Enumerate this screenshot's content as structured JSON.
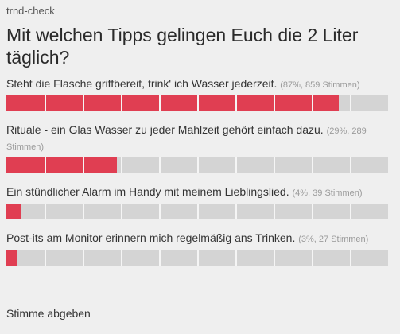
{
  "brand": "trnd-check",
  "question": "Mit welchen Tipps gelingen Euch die 2 Liter täglich?",
  "options": [
    {
      "label": "Steht die Flasche griffbereit, trink' ich Wasser jederzeit.",
      "stats": "(87%, 859 Stimmen)",
      "percent": 87
    },
    {
      "label": "Rituale - ein Glas Wasser zu jeder Mahlzeit gehört einfach dazu.",
      "stats": "(29%, 289 Stimmen)",
      "percent": 29
    },
    {
      "label": "Ein stündlicher Alarm im Handy mit meinem Lieblingslied.",
      "stats": "(4%, 39 Stimmen)",
      "percent": 4
    },
    {
      "label": "Post-its am Monitor erinnern mich regelmäßig ans Trinken.",
      "stats": "(3%, 27 Stimmen)",
      "percent": 3
    }
  ],
  "submit_label": "Stimme abgeben",
  "colors": {
    "bar_fill": "#e03e52",
    "bar_track": "#d4d4d4",
    "background": "#efefef"
  }
}
